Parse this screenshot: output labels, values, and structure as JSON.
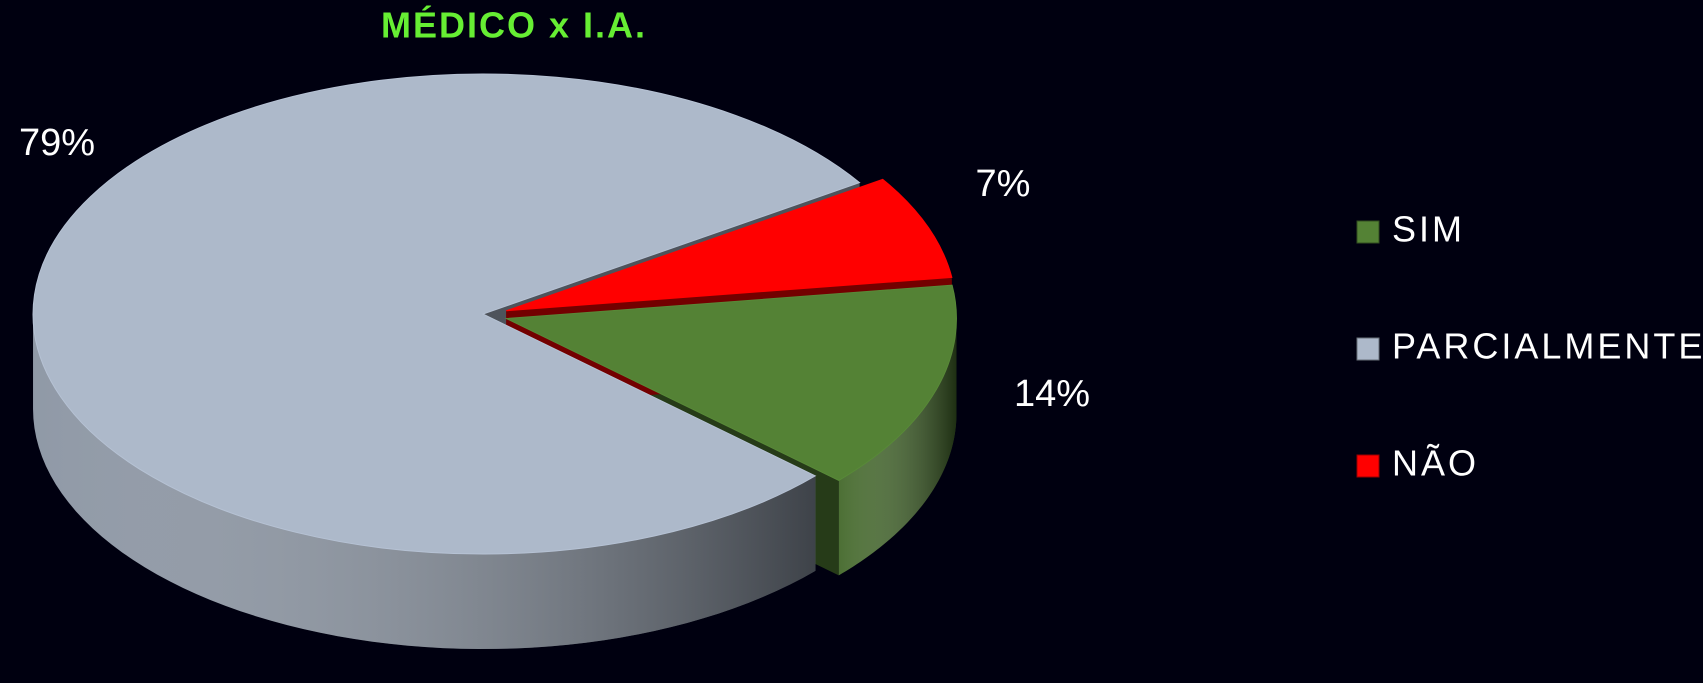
{
  "chart_data": {
    "type": "pie3d",
    "title": "MÉDICO x I.A.",
    "categories": [
      "SIM",
      "PARCIALMENTE",
      "NÃO"
    ],
    "values": [
      14,
      79,
      7
    ],
    "value_labels": [
      "14%",
      "79%",
      "7%"
    ],
    "colors": [
      "#548235",
      "#adb9ca",
      "#ff0000"
    ],
    "legend": "right"
  }
}
